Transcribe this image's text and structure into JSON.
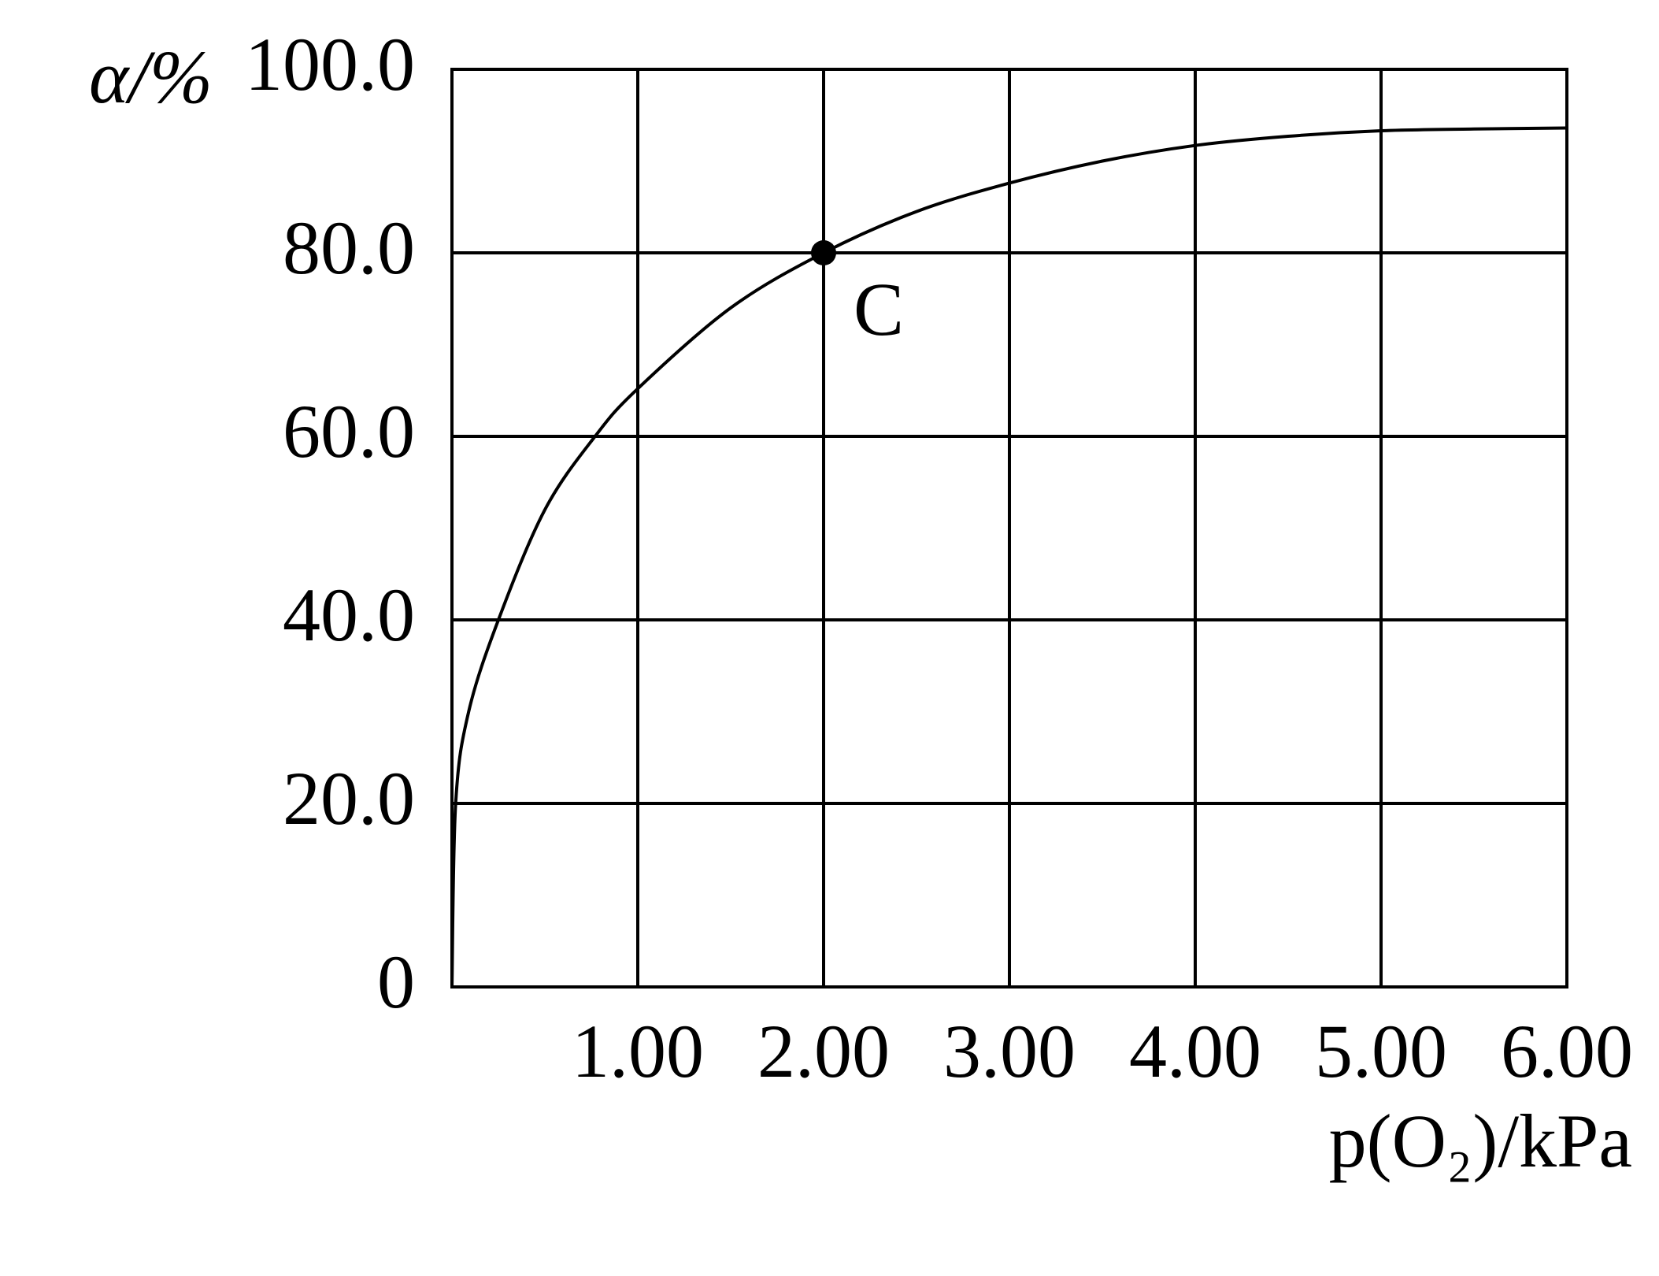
{
  "chart_data": {
    "type": "line",
    "x_label": "p(O₂)/kPa",
    "y_label": "α/%",
    "series": [
      {
        "color": "#000000",
        "x": [
          0,
          0.02,
          0.09,
          0.25,
          0.5,
          0.77,
          1,
          1.5,
          2,
          2.5,
          3,
          3.5,
          4,
          4.5,
          5,
          5.5,
          6
        ],
        "values": [
          0,
          20,
          30,
          40,
          52,
          60,
          65.2,
          74,
          80,
          84.5,
          87.6,
          90,
          91.7,
          92.7,
          93.3,
          93.5,
          93.6
        ]
      }
    ],
    "points": [
      {
        "x": 2,
        "y": 80,
        "label": "C"
      }
    ],
    "xlim": [
      0,
      6
    ],
    "ylim": [
      0,
      100
    ],
    "xticks": [
      {
        "value": 1,
        "label": "1.00"
      },
      {
        "value": 2,
        "label": "2.00"
      },
      {
        "value": 3,
        "label": "3.00"
      },
      {
        "value": 4,
        "label": "4.00"
      },
      {
        "value": 5,
        "label": "5.00"
      },
      {
        "value": 6,
        "label": "6.00"
      }
    ],
    "yticks": [
      0,
      {
        "value": 20,
        "label": "20.0"
      },
      {
        "value": 40,
        "label": "40.0"
      },
      {
        "value": 60,
        "label": "60.0"
      },
      {
        "value": 80,
        "label": "80.0"
      },
      {
        "value": 100,
        "label": "100.0"
      }
    ],
    "grid": true
  }
}
